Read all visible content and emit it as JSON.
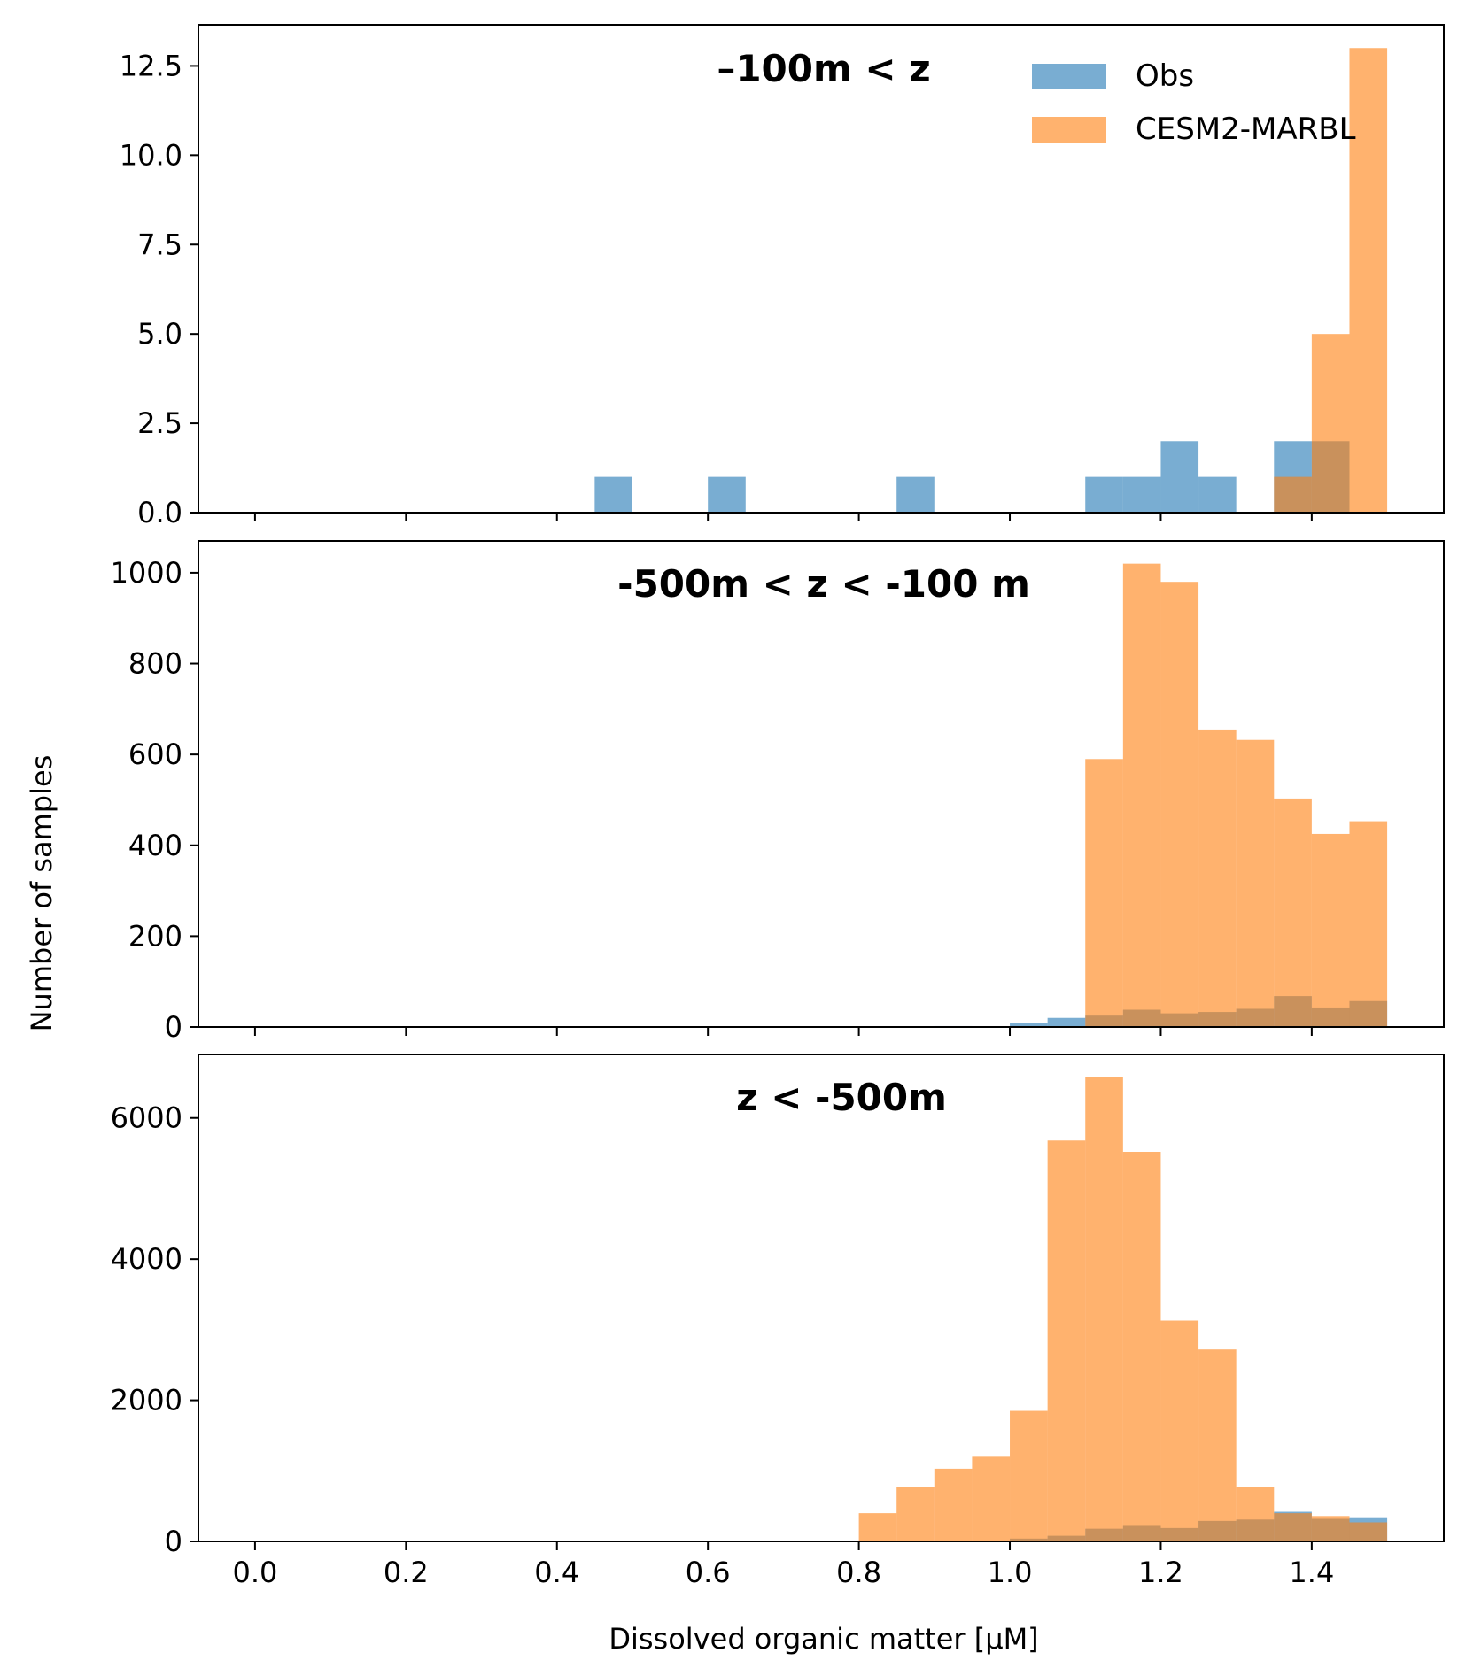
{
  "figure": {
    "ylabel": "Number of samples",
    "xlabel": "Dissolved organic matter [µM]"
  },
  "legend": [
    {
      "label": "Obs",
      "color": "#1f77b4"
    },
    {
      "label": "CESM2-MARBL",
      "color": "#ff7f0e"
    }
  ],
  "chart_data": [
    {
      "type": "bar",
      "title": "–100m < z",
      "xlim": [
        -0.075,
        1.575
      ],
      "ylim": [
        0,
        13.65
      ],
      "yticks": [
        0,
        2.5,
        5,
        7.5,
        10,
        12.5
      ],
      "ytick_labels": [
        "0.0",
        "2.5",
        "5.0",
        "7.5",
        "10.0",
        "12.5"
      ],
      "bin_edges": [
        0.8,
        0.85,
        0.9,
        0.95,
        1.0,
        1.05,
        1.1,
        1.15,
        1.2,
        1.25,
        1.3,
        1.35,
        1.4,
        1.45,
        1.5
      ],
      "legend_position": "top-right",
      "series": [
        {
          "name": "Obs",
          "color": "#1f77b4",
          "bars": [
            {
              "x0": 0.45,
              "x1": 0.5,
              "value": 1
            },
            {
              "x0": 0.6,
              "x1": 0.65,
              "value": 1
            },
            {
              "x0": 0.85,
              "x1": 0.9,
              "value": 1
            },
            {
              "x0": 1.1,
              "x1": 1.15,
              "value": 1
            },
            {
              "x0": 1.15,
              "x1": 1.2,
              "value": 1
            },
            {
              "x0": 1.2,
              "x1": 1.25,
              "value": 2
            },
            {
              "x0": 1.25,
              "x1": 1.3,
              "value": 1
            },
            {
              "x0": 1.35,
              "x1": 1.4,
              "value": 2
            },
            {
              "x0": 1.4,
              "x1": 1.45,
              "value": 2
            }
          ]
        },
        {
          "name": "CESM2-MARBL",
          "color": "#ff7f0e",
          "bars": [
            {
              "x0": 1.35,
              "x1": 1.4,
              "value": 1
            },
            {
              "x0": 1.4,
              "x1": 1.45,
              "value": 5
            },
            {
              "x0": 1.45,
              "x1": 1.5,
              "value": 13
            }
          ]
        }
      ]
    },
    {
      "type": "bar",
      "title": "-500m < z < -100 m",
      "xlim": [
        -0.075,
        1.575
      ],
      "ylim": [
        0,
        1070
      ],
      "yticks": [
        0,
        200,
        400,
        600,
        800,
        1000
      ],
      "ytick_labels": [
        "0",
        "200",
        "400",
        "600",
        "800",
        "1000"
      ],
      "series": [
        {
          "name": "Obs",
          "color": "#1f77b4",
          "bars": [
            {
              "x0": 0.9,
              "x1": 0.95,
              "value": 2
            },
            {
              "x0": 1.0,
              "x1": 1.05,
              "value": 8
            },
            {
              "x0": 1.05,
              "x1": 1.1,
              "value": 20
            },
            {
              "x0": 1.1,
              "x1": 1.15,
              "value": 25
            },
            {
              "x0": 1.15,
              "x1": 1.2,
              "value": 38
            },
            {
              "x0": 1.2,
              "x1": 1.25,
              "value": 30
            },
            {
              "x0": 1.25,
              "x1": 1.3,
              "value": 33
            },
            {
              "x0": 1.3,
              "x1": 1.35,
              "value": 40
            },
            {
              "x0": 1.35,
              "x1": 1.4,
              "value": 68
            },
            {
              "x0": 1.4,
              "x1": 1.45,
              "value": 43
            },
            {
              "x0": 1.45,
              "x1": 1.5,
              "value": 57
            }
          ]
        },
        {
          "name": "CESM2-MARBL",
          "color": "#ff7f0e",
          "bars": [
            {
              "x0": 1.1,
              "x1": 1.15,
              "value": 590
            },
            {
              "x0": 1.15,
              "x1": 1.2,
              "value": 1020
            },
            {
              "x0": 1.2,
              "x1": 1.25,
              "value": 980
            },
            {
              "x0": 1.25,
              "x1": 1.3,
              "value": 655
            },
            {
              "x0": 1.3,
              "x1": 1.35,
              "value": 632
            },
            {
              "x0": 1.35,
              "x1": 1.4,
              "value": 503
            },
            {
              "x0": 1.4,
              "x1": 1.45,
              "value": 425
            },
            {
              "x0": 1.45,
              "x1": 1.5,
              "value": 453
            }
          ]
        }
      ]
    },
    {
      "type": "bar",
      "title": "z < -500m",
      "xlim": [
        -0.075,
        1.575
      ],
      "ylim": [
        0,
        6900
      ],
      "yticks": [
        0,
        2000,
        4000,
        6000
      ],
      "ytick_labels": [
        "0",
        "2000",
        "4000",
        "6000"
      ],
      "xticks": [
        0.0,
        0.2,
        0.4,
        0.6,
        0.8,
        1.0,
        1.2,
        1.4
      ],
      "xtick_labels": [
        "0.0",
        "0.2",
        "0.4",
        "0.6",
        "0.8",
        "1.0",
        "1.2",
        "1.4"
      ],
      "series": [
        {
          "name": "Obs",
          "color": "#1f77b4",
          "bars": [
            {
              "x0": 1.0,
              "x1": 1.05,
              "value": 40
            },
            {
              "x0": 1.05,
              "x1": 1.1,
              "value": 80
            },
            {
              "x0": 1.1,
              "x1": 1.15,
              "value": 180
            },
            {
              "x0": 1.15,
              "x1": 1.2,
              "value": 220
            },
            {
              "x0": 1.2,
              "x1": 1.25,
              "value": 190
            },
            {
              "x0": 1.25,
              "x1": 1.3,
              "value": 290
            },
            {
              "x0": 1.3,
              "x1": 1.35,
              "value": 310
            },
            {
              "x0": 1.35,
              "x1": 1.4,
              "value": 420
            },
            {
              "x0": 1.4,
              "x1": 1.45,
              "value": 320
            },
            {
              "x0": 1.45,
              "x1": 1.5,
              "value": 330
            }
          ]
        },
        {
          "name": "CESM2-MARBL",
          "color": "#ff7f0e",
          "bars": [
            {
              "x0": 0.8,
              "x1": 0.85,
              "value": 400
            },
            {
              "x0": 0.85,
              "x1": 0.9,
              "value": 770
            },
            {
              "x0": 0.9,
              "x1": 0.95,
              "value": 1030
            },
            {
              "x0": 0.95,
              "x1": 1.0,
              "value": 1200
            },
            {
              "x0": 1.0,
              "x1": 1.05,
              "value": 1850
            },
            {
              "x0": 1.05,
              "x1": 1.1,
              "value": 5680
            },
            {
              "x0": 1.1,
              "x1": 1.15,
              "value": 6580
            },
            {
              "x0": 1.15,
              "x1": 1.2,
              "value": 5520
            },
            {
              "x0": 1.2,
              "x1": 1.25,
              "value": 3130
            },
            {
              "x0": 1.25,
              "x1": 1.3,
              "value": 2720
            },
            {
              "x0": 1.3,
              "x1": 1.35,
              "value": 770
            },
            {
              "x0": 1.35,
              "x1": 1.4,
              "value": 400
            },
            {
              "x0": 1.4,
              "x1": 1.45,
              "value": 360
            },
            {
              "x0": 1.45,
              "x1": 1.5,
              "value": 270
            }
          ]
        }
      ]
    }
  ]
}
